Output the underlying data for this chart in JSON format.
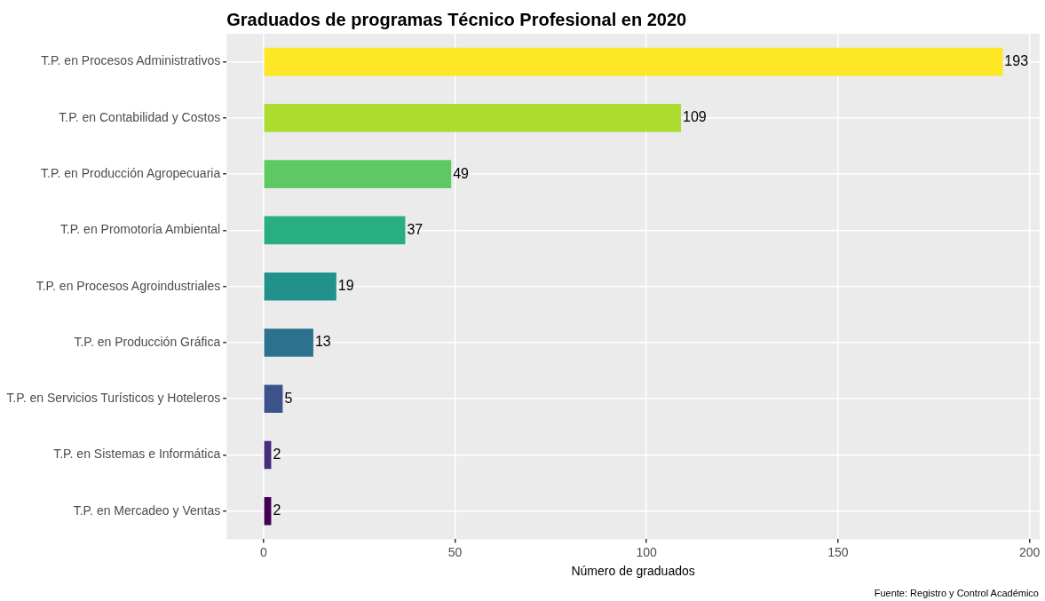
{
  "chart_data": {
    "type": "bar",
    "orientation": "horizontal",
    "title": "Graduados de programas Técnico Profesional en 2020",
    "xlabel": "Número de graduados",
    "categories": [
      "T.P. en Procesos Administrativos",
      "T.P. en Contabilidad y Costos",
      "T.P. en Producción Agropecuaria",
      "T.P. en Promotoría Ambiental",
      "T.P. en Procesos Agroindustriales",
      "T.P. en Producción Gráfica",
      "T.P. en Servicios Turísticos y Hoteleros",
      "T.P. en Sistemas e Informática",
      "T.P. en Mercadeo y Ventas"
    ],
    "values": [
      193,
      109,
      49,
      37,
      19,
      13,
      5,
      2,
      2
    ],
    "colors": [
      "#fde725",
      "#addc30",
      "#5ec962",
      "#28ae80",
      "#21918c",
      "#2c728e",
      "#3b528b",
      "#472d7b",
      "#440154"
    ],
    "xlim": [
      -9.65,
      202.65
    ],
    "xticks": [
      0,
      50,
      100,
      150,
      200
    ],
    "grid": true,
    "legend": false,
    "data_labels": true,
    "annotations": [
      "Fuente: Registro y Control Académico"
    ]
  }
}
